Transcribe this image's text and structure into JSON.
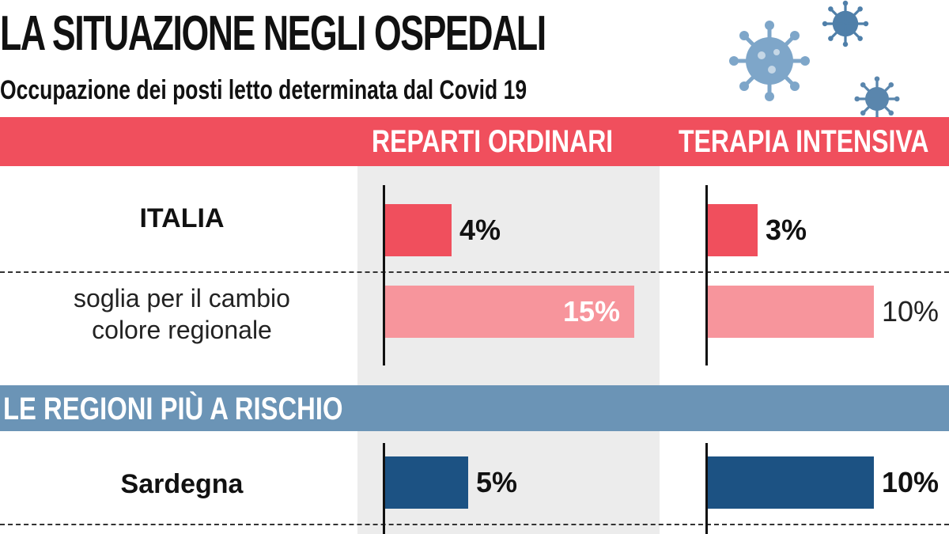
{
  "header": {
    "title": "LA SITUAZIONE NEGLI OSPEDALI",
    "subtitle": "Occupazione dei posti letto determinata dal Covid 19"
  },
  "columns": {
    "left": "REPARTI ORDINARI",
    "right": "TERAPIA INTENSIVA"
  },
  "section2": {
    "label": "LE REGIONI PIÙ A RISCHIO"
  },
  "rows": {
    "italia": "ITALIA",
    "soglia_line1": "soglia per il cambio",
    "soglia_line2": "colore regionale",
    "sardegna": "Sardegna"
  },
  "colors": {
    "red": "#f04f5d",
    "light_red": "#f7959c",
    "dark_blue": "#1c5283",
    "band_blue": "#6b94b6",
    "virus": "#7ea6c9"
  },
  "icons": [
    "virus-icon",
    "virus-icon",
    "virus-icon"
  ],
  "chart_data": {
    "type": "bar",
    "categories": [
      "ITALIA",
      "soglia per il cambio colore regionale",
      "Sardegna"
    ],
    "series": [
      {
        "name": "REPARTI ORDINARI",
        "values": [
          4,
          15,
          5
        ],
        "labels": [
          "4%",
          "15%",
          "5%"
        ]
      },
      {
        "name": "TERAPIA INTENSIVA",
        "values": [
          3,
          10,
          10
        ],
        "labels": [
          "3%",
          "10%",
          "10%"
        ]
      }
    ],
    "title": "LA SITUAZIONE NEGLI OSPEDALI",
    "subtitle": "Occupazione dei posti letto determinata dal Covid 19",
    "section": "LE REGIONI PIÙ A RISCHIO",
    "unit": "%"
  }
}
